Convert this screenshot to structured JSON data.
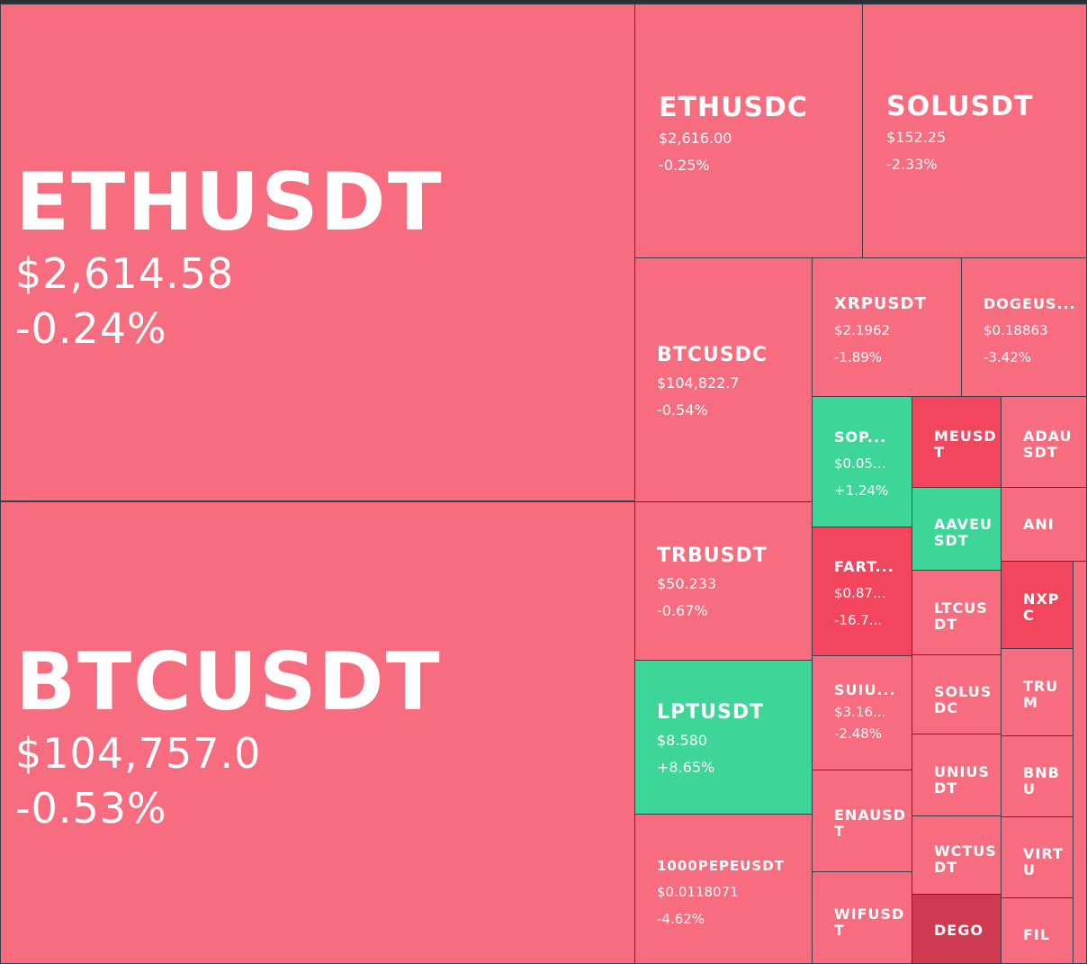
{
  "colors": {
    "down": "#f76c7e",
    "down_strong": "#f4455f",
    "down_stronger": "#cf3a50",
    "up": "#3dd598"
  },
  "tiles": {
    "ethusdt": {
      "symbol": "ETHUSDT",
      "price": "$2,614.58",
      "change": "-0.24%"
    },
    "btcusdt": {
      "symbol": "BTCUSDT",
      "price": "$104,757.0",
      "change": "-0.53%"
    },
    "ethusdc": {
      "symbol": "ETHUSDC",
      "price": "$2,616.00",
      "change": "-0.25%"
    },
    "solusdt": {
      "symbol": "SOLUSDT",
      "price": "$152.25",
      "change": "-2.33%"
    },
    "btcusdc": {
      "symbol": "BTCUSDC",
      "price": "$104,822.7",
      "change": "-0.54%"
    },
    "xrpusdt": {
      "symbol": "XRPUSDT",
      "price": "$2.1962",
      "change": "-1.89%"
    },
    "dogeusdt": {
      "symbol": "DOGEUS...",
      "price": "$0.18863",
      "change": "-3.42%"
    },
    "trbusdt": {
      "symbol": "TRBUSDT",
      "price": "$50.233",
      "change": "-0.67%"
    },
    "lptusdt": {
      "symbol": "LPTUSDT",
      "price": "$8.580",
      "change": "+8.65%"
    },
    "pepe": {
      "symbol": "1000PEPEUSDT",
      "price": "$0.0118071",
      "change": "-4.62%"
    },
    "soph": {
      "symbol": "SOP...",
      "price": "$0.05...",
      "change": "+1.24%"
    },
    "fart": {
      "symbol": "FART...",
      "price": "$0.87...",
      "change": "-16.7..."
    },
    "suiu": {
      "symbol": "SUIU...",
      "price": "$3.16...",
      "change": "-2.48%"
    },
    "enausdt": {
      "symbol": "ENAUSDT"
    },
    "wifusdt": {
      "symbol": "WIFUSDT"
    },
    "meusdt": {
      "symbol": "MEUSDT"
    },
    "aaveusdt": {
      "symbol": "AAVEUSDT"
    },
    "ltcusdt": {
      "symbol": "LTCUSDT"
    },
    "solusdc": {
      "symbol": "SOLUSDC"
    },
    "uniusdt": {
      "symbol": "UNIUSDT"
    },
    "wctusdt": {
      "symbol": "WCTUSDT"
    },
    "dego": {
      "symbol": "DEGO"
    },
    "adausdt": {
      "symbol": "ADAUSDT"
    },
    "ani": {
      "symbol": "ANI"
    },
    "nxpc": {
      "symbol": "NXPC"
    },
    "trum": {
      "symbol": "TRUM"
    },
    "bnbu": {
      "symbol": "BNBU"
    },
    "virtu": {
      "symbol": "VIRTU"
    },
    "fil": {
      "symbol": "FIL"
    }
  }
}
